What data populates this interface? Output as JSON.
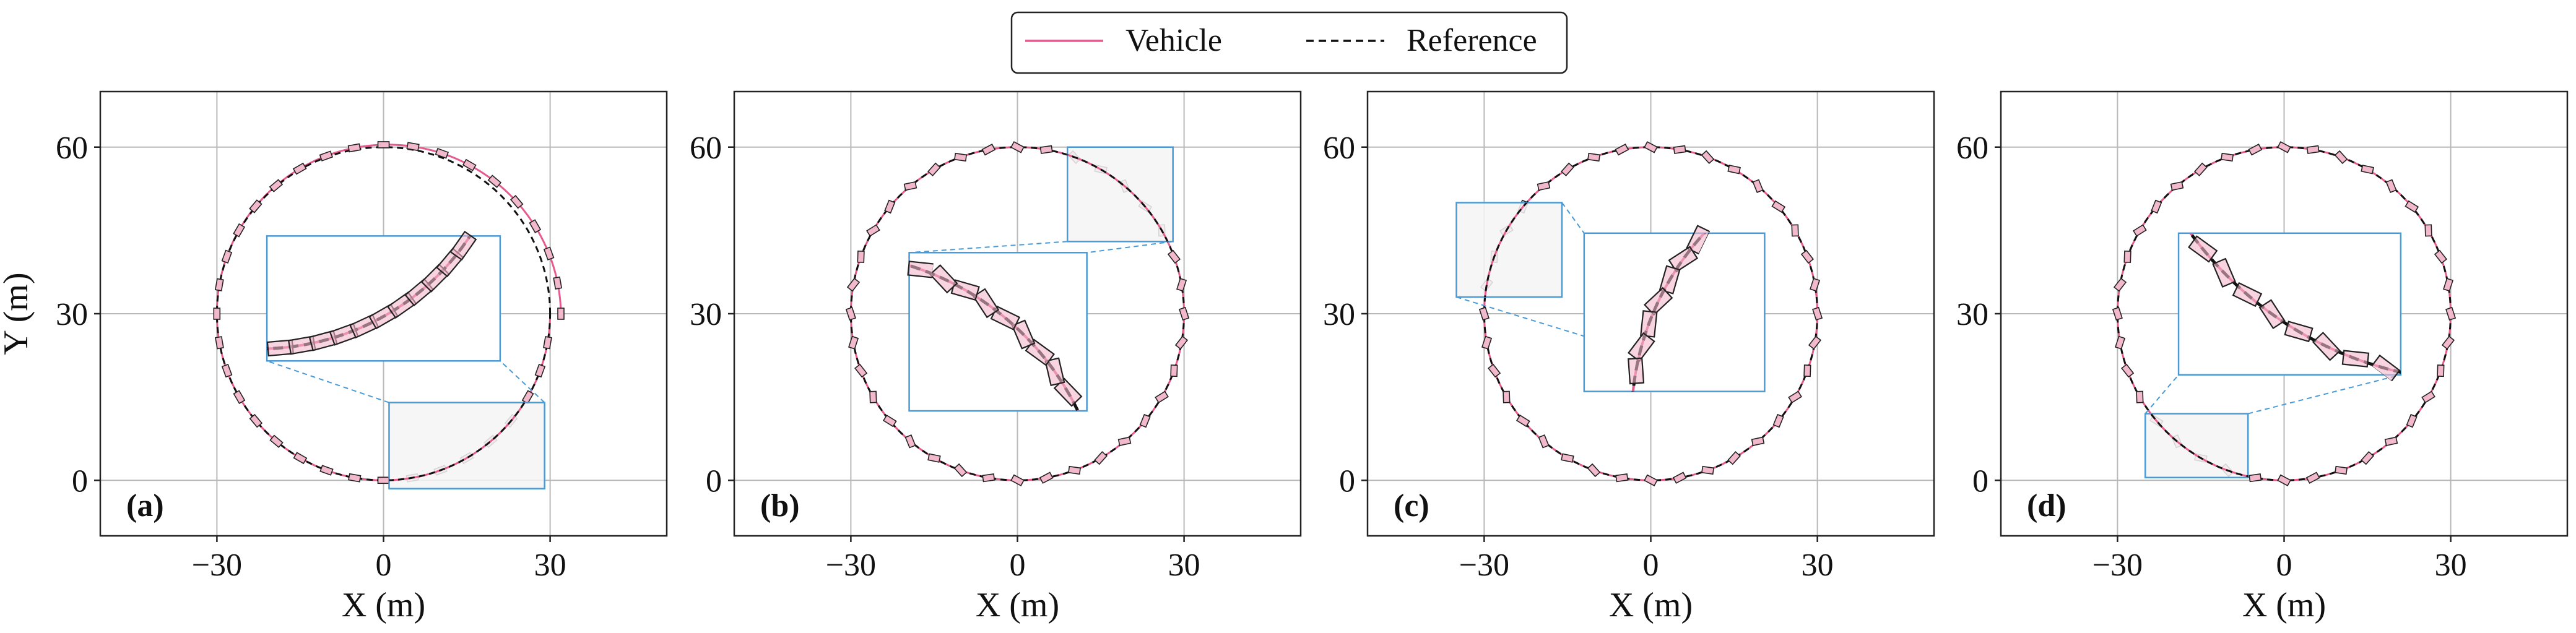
{
  "colors": {
    "vehicle": "#e75a8f",
    "reference": "#111111",
    "inset": "#4a9ad6",
    "grid": "#b8b8b8",
    "body_fill": "#f2b8cc"
  },
  "legend": {
    "vehicle_label": "Vehicle",
    "reference_label": "Reference",
    "placement": "top-center"
  },
  "chart_data": [
    {
      "type": "line",
      "panel_label": "(a)",
      "xlabel": "X (m)",
      "ylabel": "Y (m)",
      "xlim": [
        -51,
        51
      ],
      "ylim": [
        -10,
        70
      ],
      "xticks": [
        -30,
        0,
        30
      ],
      "yticks": [
        0,
        30,
        60
      ],
      "xtick_labels": [
        "−30",
        "0",
        "30"
      ],
      "ytick_labels": [
        "0",
        "30",
        "60"
      ],
      "grid": true,
      "series": [
        {
          "name": "Reference",
          "shape": "circle",
          "center": [
            0,
            30
          ],
          "radius": 30
        },
        {
          "name": "Vehicle",
          "shape": "circle",
          "center": [
            0,
            30
          ],
          "radius": 30,
          "deviation_peak": 2.0,
          "deviation_center_deg": -15,
          "deviation_width_deg": 60
        }
      ],
      "zoom_source": {
        "x": [
          1,
          29
        ],
        "y": [
          -1.5,
          14
        ]
      },
      "zoom_inset": {
        "x": [
          -21,
          21
        ],
        "y": [
          21.5,
          44
        ]
      }
    },
    {
      "type": "line",
      "panel_label": "(b)",
      "xlabel": "X (m)",
      "ylabel": "",
      "xlim": [
        -51,
        51
      ],
      "ylim": [
        -10,
        70
      ],
      "xticks": [
        -30,
        0,
        30
      ],
      "yticks": [
        0,
        30,
        60
      ],
      "xtick_labels": [
        "−30",
        "0",
        "30"
      ],
      "ytick_labels": [
        "0",
        "30",
        "60"
      ],
      "grid": true,
      "series": [
        {
          "name": "Reference",
          "shape": "circle",
          "center": [
            0,
            30
          ],
          "radius": 30
        },
        {
          "name": "Vehicle",
          "shape": "circle",
          "center": [
            0,
            30
          ],
          "radius": 30,
          "deviation_peak": 0
        }
      ],
      "zoom_source": {
        "x": [
          9,
          28
        ],
        "y": [
          43,
          60
        ]
      },
      "zoom_inset": {
        "x": [
          -19.5,
          12.5
        ],
        "y": [
          12.5,
          41
        ]
      }
    },
    {
      "type": "line",
      "panel_label": "(c)",
      "xlabel": "X (m)",
      "ylabel": "",
      "xlim": [
        -51,
        51
      ],
      "ylim": [
        -10,
        70
      ],
      "xticks": [
        -30,
        0,
        30
      ],
      "yticks": [
        0,
        30,
        60
      ],
      "xtick_labels": [
        "−30",
        "0",
        "30"
      ],
      "ytick_labels": [
        "0",
        "30",
        "60"
      ],
      "grid": true,
      "series": [
        {
          "name": "Reference",
          "shape": "circle",
          "center": [
            0,
            30
          ],
          "radius": 30
        },
        {
          "name": "Vehicle",
          "shape": "circle",
          "center": [
            0,
            30
          ],
          "radius": 30,
          "deviation_peak": 0
        }
      ],
      "zoom_source": {
        "x": [
          -35,
          -16
        ],
        "y": [
          33,
          50
        ]
      },
      "zoom_inset": {
        "x": [
          -12,
          20.5
        ],
        "y": [
          16,
          44.5
        ]
      }
    },
    {
      "type": "line",
      "panel_label": "(d)",
      "xlabel": "X (m)",
      "ylabel": "",
      "xlim": [
        -51,
        51
      ],
      "ylim": [
        -10,
        70
      ],
      "xticks": [
        -30,
        0,
        30
      ],
      "yticks": [
        0,
        30,
        60
      ],
      "xtick_labels": [
        "−30",
        "0",
        "30"
      ],
      "ytick_labels": [
        "0",
        "30",
        "60"
      ],
      "grid": true,
      "series": [
        {
          "name": "Reference",
          "shape": "circle",
          "center": [
            0,
            30
          ],
          "radius": 30
        },
        {
          "name": "Vehicle",
          "shape": "circle",
          "center": [
            0,
            30
          ],
          "radius": 30,
          "deviation_peak": 0
        }
      ],
      "zoom_source": {
        "x": [
          -25,
          -6.5
        ],
        "y": [
          0.5,
          12
        ]
      },
      "zoom_inset": {
        "x": [
          -19,
          21
        ],
        "y": [
          19,
          44.5
        ]
      }
    }
  ]
}
